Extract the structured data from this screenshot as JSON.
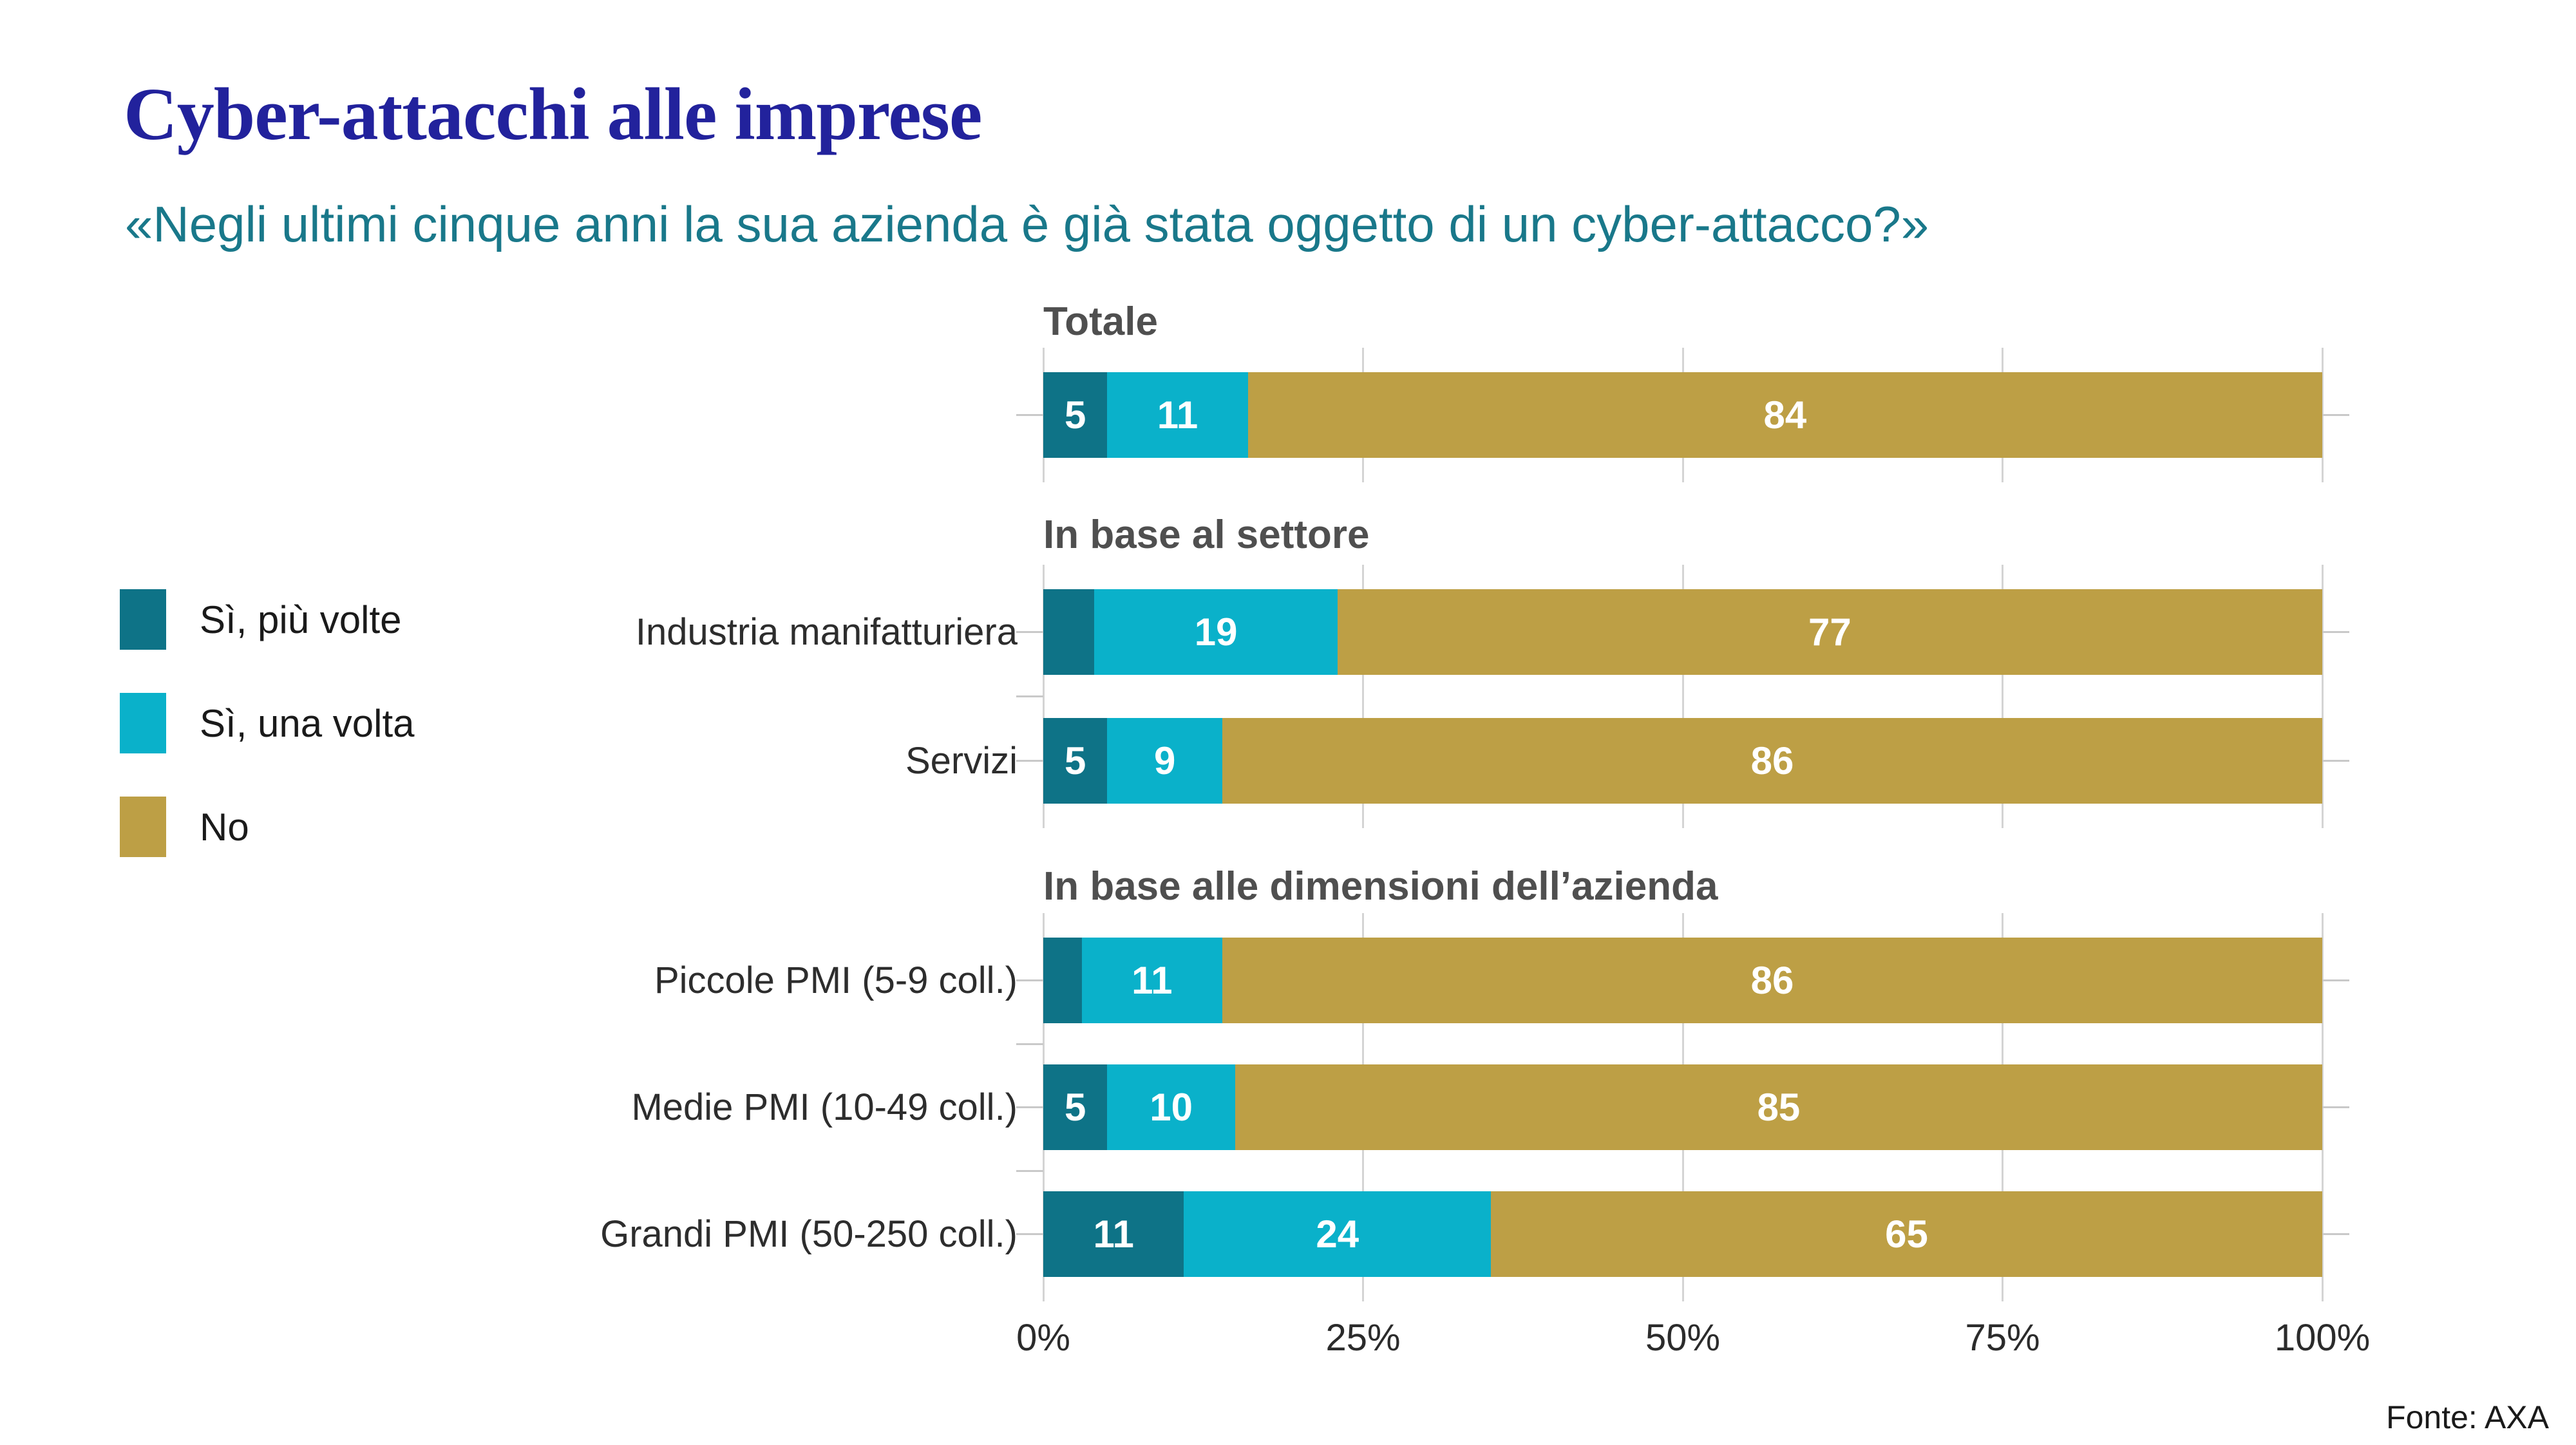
{
  "title": "Cyber-attacchi alle imprese",
  "subtitle": "«Negli ultimi cinque anni la sua azienda è già stata oggetto di un cyber-attacco?»",
  "source": "Fonte: AXA",
  "chart_data": {
    "type": "bar",
    "stacked": true,
    "orientation": "horizontal",
    "unit": "%",
    "x_axis": {
      "range": [
        0,
        100
      ],
      "ticks": [
        "0%",
        "25%",
        "50%",
        "75%",
        "100%"
      ]
    },
    "legend": {
      "position": "left",
      "entries": [
        "Sì, più volte",
        "Sì, una volta",
        "No"
      ]
    },
    "series_colors": [
      "#0E7387",
      "#0AB1CA",
      "#BD9F45"
    ],
    "sections": [
      {
        "header": "Totale",
        "rows": [
          {
            "label": "",
            "values": [
              5,
              11,
              84
            ],
            "labels": [
              "5",
              "11",
              "84"
            ]
          }
        ]
      },
      {
        "header": "In base al settore",
        "rows": [
          {
            "label": "Industria manifatturiera",
            "values": [
              4,
              19,
              77
            ],
            "labels": [
              "",
              "19",
              "77"
            ]
          },
          {
            "label": "Servizi",
            "values": [
              5,
              9,
              86
            ],
            "labels": [
              "5",
              "9",
              "86"
            ]
          }
        ]
      },
      {
        "header": "In base alle dimensioni dell’azienda",
        "rows": [
          {
            "label": "Piccole PMI (5-9 coll.)",
            "values": [
              3,
              11,
              86
            ],
            "labels": [
              "",
              "11",
              "86"
            ]
          },
          {
            "label": "Medie PMI (10-49 coll.)",
            "values": [
              5,
              10,
              85
            ],
            "labels": [
              "5",
              "10",
              "85"
            ]
          },
          {
            "label": "Grandi PMI (50-250 coll.)",
            "values": [
              11,
              24,
              65
            ],
            "labels": [
              "11",
              "24",
              "65"
            ]
          }
        ]
      }
    ]
  }
}
